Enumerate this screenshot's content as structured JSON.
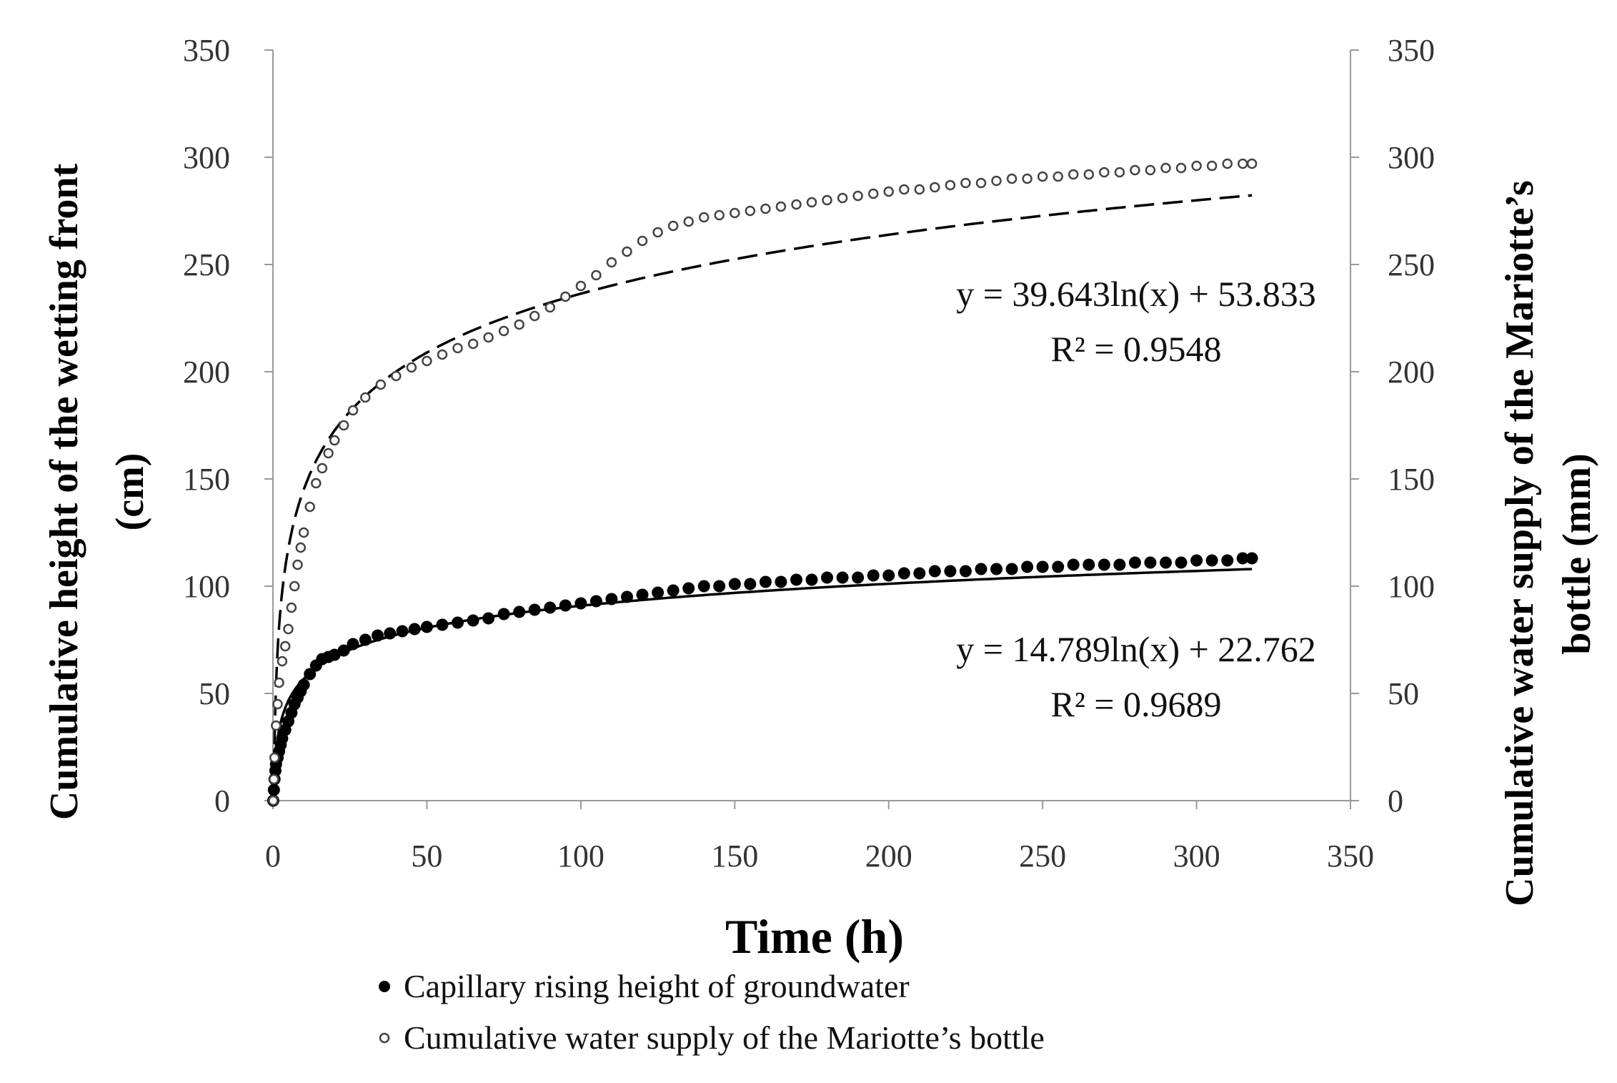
{
  "chart_data": {
    "type": "scatter",
    "xlabel": "Time (h)",
    "ylabel_left": [
      "Cumulative height of the wetting front",
      "(cm)"
    ],
    "ylabel_right": [
      "Cumulative  water supply of the Mariotte’s",
      "bottle (mm)"
    ],
    "xlim": [
      0,
      350
    ],
    "ylim_left": [
      0,
      350
    ],
    "ylim_right": [
      0,
      350
    ],
    "x_ticks": [
      "0",
      "50",
      "100",
      "150",
      "200",
      "250",
      "300",
      "350"
    ],
    "y_ticks": [
      "0",
      "50",
      "100",
      "150",
      "200",
      "250",
      "300",
      "350"
    ],
    "grid": false,
    "legend_position": "bottom",
    "series": [
      {
        "name": "Capillary rising height of groundwater",
        "marker": "filled-circle",
        "axis": "left",
        "color": "#000000",
        "x": [
          0.1,
          0.3,
          0.5,
          0.8,
          1,
          1.5,
          2,
          2.5,
          3,
          4,
          5,
          6,
          7,
          8,
          9,
          10,
          12,
          14,
          16,
          18,
          20,
          23,
          26,
          30,
          34,
          38,
          42,
          46,
          50,
          55,
          60,
          65,
          70,
          75,
          80,
          85,
          90,
          95,
          100,
          105,
          110,
          115,
          120,
          125,
          130,
          135,
          140,
          145,
          150,
          155,
          160,
          165,
          170,
          175,
          180,
          185,
          190,
          195,
          200,
          205,
          210,
          215,
          220,
          225,
          230,
          235,
          240,
          245,
          250,
          255,
          260,
          265,
          270,
          275,
          280,
          285,
          290,
          295,
          300,
          305,
          310,
          315,
          318
        ],
        "y": [
          0,
          5,
          10,
          14,
          17,
          20,
          23,
          26,
          29,
          33,
          37,
          41,
          45,
          48,
          51,
          54,
          59,
          63,
          66,
          67,
          68,
          70,
          73,
          75,
          77,
          78,
          79,
          80,
          81,
          82,
          83,
          84,
          85,
          87,
          88,
          89,
          90,
          91,
          92,
          93,
          94,
          95,
          96,
          97,
          98,
          99,
          100,
          100,
          101,
          101,
          102,
          102,
          103,
          103,
          104,
          104,
          104,
          105,
          105,
          106,
          106,
          107,
          107,
          107,
          108,
          108,
          108,
          109,
          109,
          109,
          110,
          110,
          110,
          110,
          111,
          111,
          111,
          111,
          112,
          112,
          112,
          113,
          113
        ]
      },
      {
        "name": "Cumulative  water supply of the Mariotte’s bottle",
        "marker": "open-circle",
        "axis": "right",
        "color": "#444444",
        "x": [
          0.1,
          0.3,
          0.5,
          1,
          1.5,
          2,
          3,
          4,
          5,
          6,
          7,
          8,
          9,
          10,
          12,
          14,
          16,
          18,
          20,
          23,
          26,
          30,
          35,
          40,
          45,
          50,
          55,
          60,
          65,
          70,
          75,
          80,
          85,
          90,
          95,
          100,
          105,
          110,
          115,
          120,
          125,
          130,
          135,
          140,
          145,
          150,
          155,
          160,
          165,
          170,
          175,
          180,
          185,
          190,
          195,
          200,
          205,
          210,
          215,
          220,
          225,
          230,
          235,
          240,
          245,
          250,
          255,
          260,
          265,
          270,
          275,
          280,
          285,
          290,
          295,
          300,
          305,
          310,
          315,
          318
        ],
        "y": [
          0,
          10,
          20,
          35,
          45,
          55,
          65,
          72,
          80,
          90,
          100,
          110,
          118,
          125,
          137,
          148,
          155,
          162,
          168,
          175,
          182,
          188,
          194,
          198,
          202,
          205,
          208,
          211,
          213,
          216,
          219,
          222,
          226,
          230,
          235,
          240,
          245,
          251,
          256,
          261,
          265,
          268,
          270,
          272,
          273,
          274,
          275,
          276,
          277,
          278,
          279,
          280,
          281,
          282,
          283,
          284,
          285,
          285,
          286,
          287,
          288,
          288,
          289,
          290,
          290,
          291,
          291,
          292,
          292,
          293,
          293,
          294,
          294,
          295,
          295,
          296,
          296,
          297,
          297,
          297
        ]
      },
      {
        "name": "",
        "type": "trendline",
        "style": "solid",
        "axis": "left",
        "equation": "y = 14.789ln(x) + 22.762",
        "r2": "R² = 0.9689",
        "a": 14.789,
        "b": 22.762
      },
      {
        "name": "",
        "type": "trendline",
        "style": "dashed",
        "axis": "right",
        "equation": "y = 39.643ln(x) + 53.833",
        "r2": "R² = 0.9548",
        "a": 39.643,
        "b": 53.833
      }
    ]
  }
}
